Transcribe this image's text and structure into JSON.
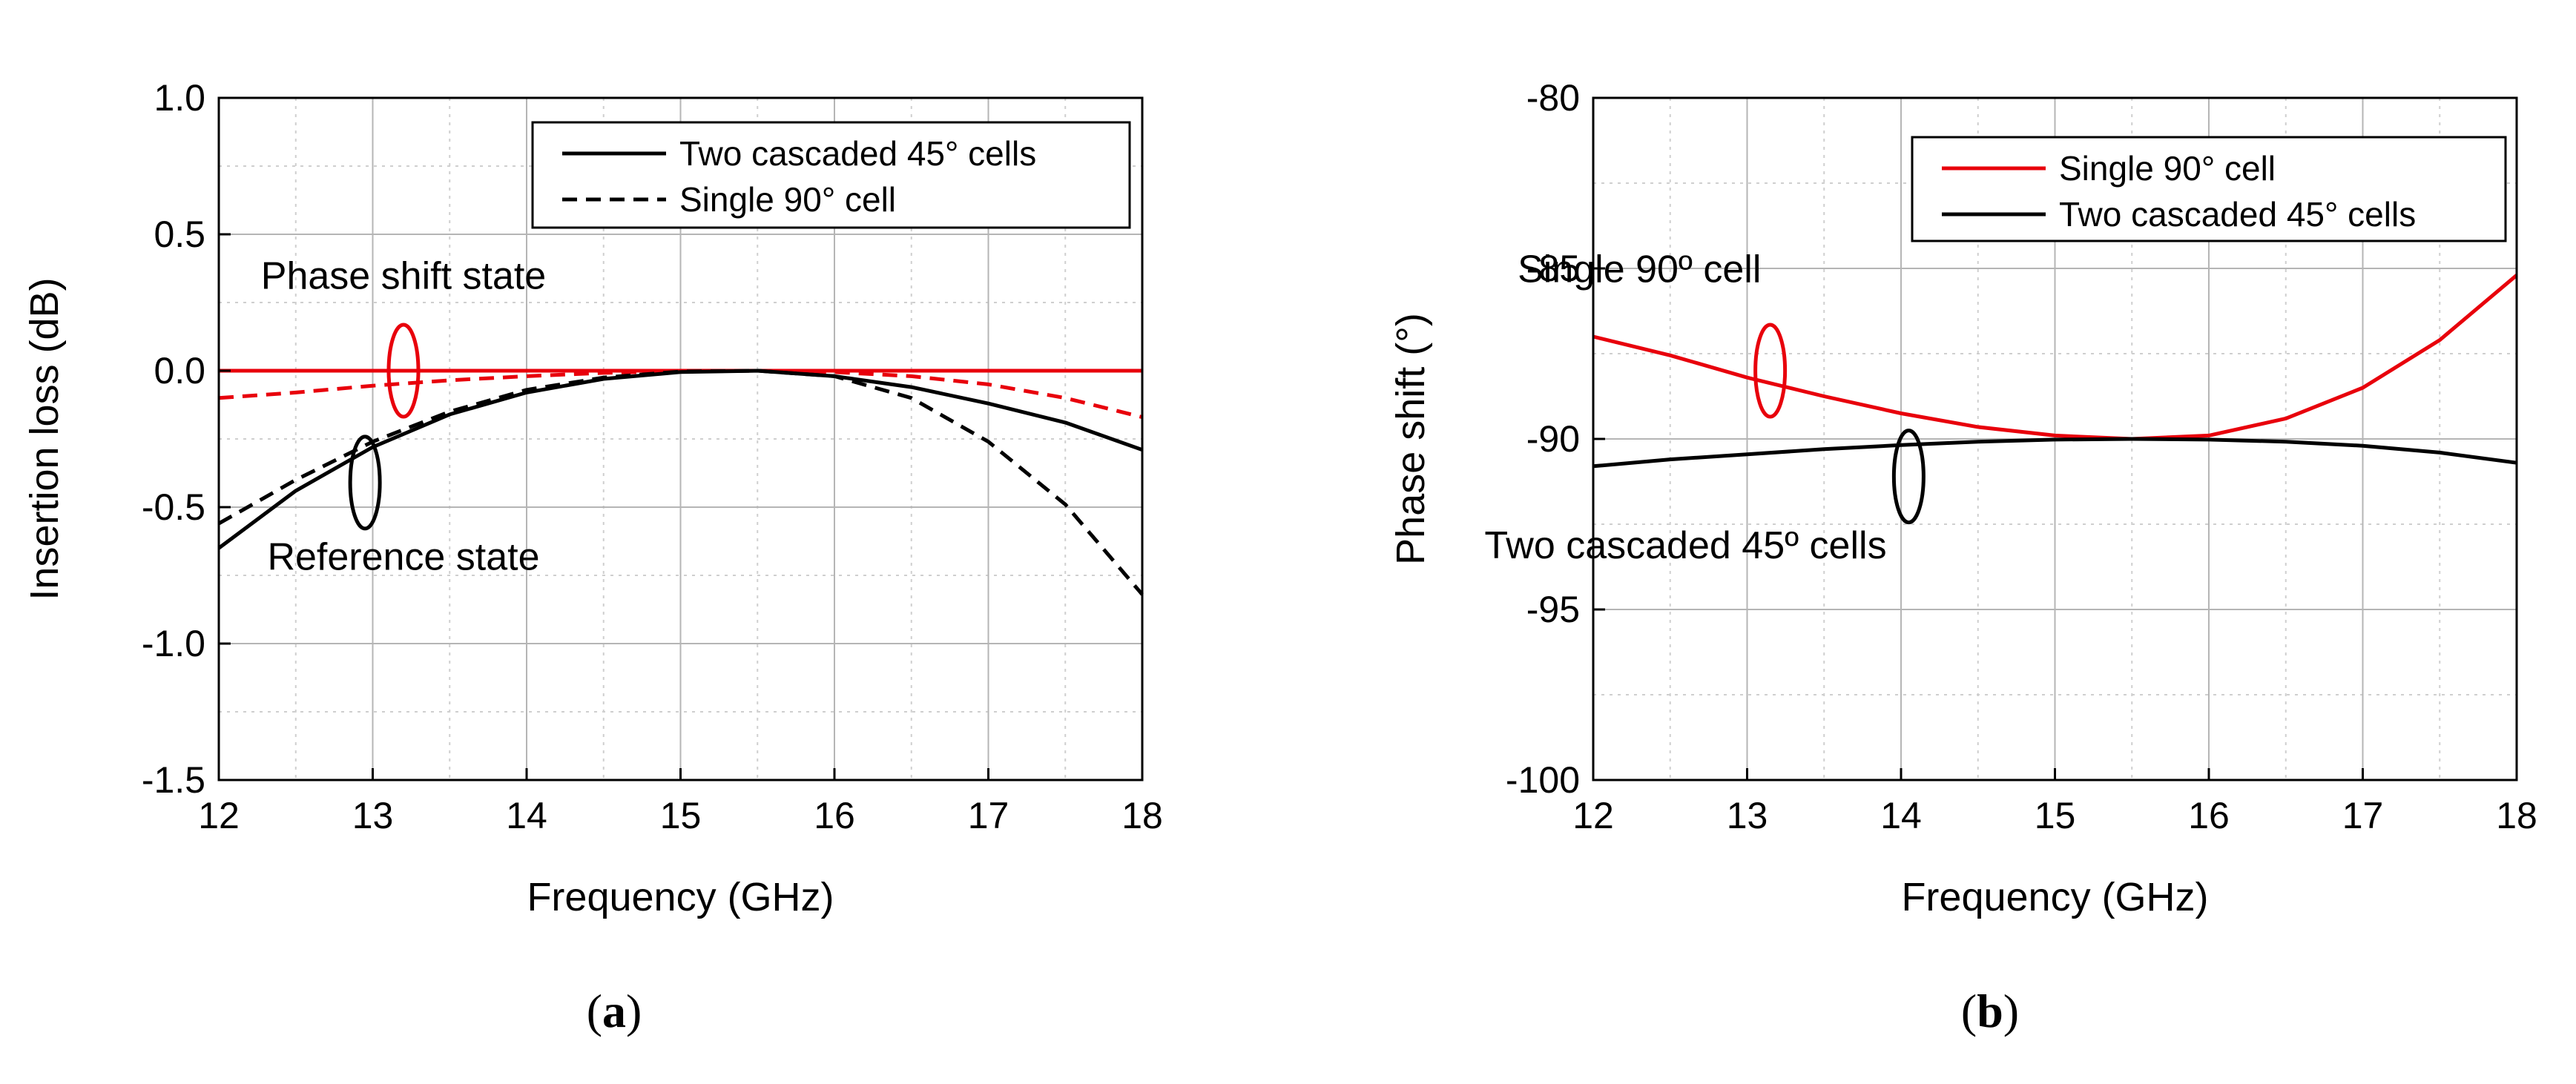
{
  "chart_data": [
    {
      "type": "line",
      "panel_label": "a",
      "title": "",
      "xlabel": "Frequency (GHz)",
      "ylabel": "Insertion loss (dB)",
      "xlim": [
        12,
        18
      ],
      "ylim": [
        -1.5,
        1.0
      ],
      "xticks": [
        12,
        13,
        14,
        15,
        16,
        17,
        18
      ],
      "yticks": [
        1.0,
        0.5,
        0.0,
        -0.5,
        -1.0,
        -1.5
      ],
      "xtick_labels": [
        "12",
        "13",
        "14",
        "15",
        "16",
        "17",
        "18"
      ],
      "ytick_labels": [
        "1.0",
        "0.5",
        "0.0",
        "-0.5",
        "-1.0",
        "-1.5"
      ],
      "grid": true,
      "legend": {
        "position": "top-right",
        "entries": [
          {
            "label": "Two cascaded 45° cells",
            "color": "#000000",
            "dash": "solid"
          },
          {
            "label": "Single 90° cell",
            "color": "#000000",
            "dash": "dashed"
          }
        ]
      },
      "series": [
        {
          "name": "Two cascaded 45° cells - phase shift state",
          "color": "#e8000b",
          "dash": "solid",
          "x": [
            12,
            13,
            14,
            15,
            15.5,
            16,
            17,
            18
          ],
          "y": [
            0.0,
            0.0,
            0.0,
            0.0,
            0.0,
            0.0,
            0.0,
            0.0
          ]
        },
        {
          "name": "Single 90° cell - phase shift state",
          "color": "#e8000b",
          "dash": "dashed",
          "x": [
            12,
            12.5,
            13,
            13.5,
            14,
            14.5,
            15,
            15.5,
            16,
            16.5,
            17,
            17.5,
            18
          ],
          "y": [
            -0.1,
            -0.08,
            -0.055,
            -0.035,
            -0.02,
            -0.008,
            -0.002,
            0.0,
            -0.005,
            -0.02,
            -0.05,
            -0.1,
            -0.17
          ]
        },
        {
          "name": "Two cascaded 45° cells - reference state",
          "color": "#000000",
          "dash": "solid",
          "x": [
            12,
            12.5,
            13,
            13.5,
            14,
            14.5,
            15,
            15.5,
            16,
            16.5,
            17,
            17.5,
            18
          ],
          "y": [
            -0.65,
            -0.44,
            -0.28,
            -0.16,
            -0.08,
            -0.03,
            -0.005,
            0.0,
            -0.02,
            -0.06,
            -0.12,
            -0.19,
            -0.29
          ]
        },
        {
          "name": "Single 90° cell - reference state",
          "color": "#000000",
          "dash": "dashed",
          "x": [
            12,
            12.5,
            13,
            13.5,
            14,
            14.5,
            15,
            15.5,
            16,
            16.5,
            17,
            17.5,
            18
          ],
          "y": [
            -0.56,
            -0.4,
            -0.26,
            -0.15,
            -0.07,
            -0.025,
            -0.003,
            0.0,
            -0.02,
            -0.1,
            -0.26,
            -0.49,
            -0.82
          ]
        }
      ],
      "annotations": [
        {
          "text": "Phase shift state",
          "x": 13.2,
          "y": 0.3
        },
        {
          "text": "Reference state",
          "x": 13.2,
          "y": -0.73
        }
      ],
      "markers": [
        {
          "type": "ellipse",
          "color": "#e8000b",
          "x": 13.2,
          "y": 0.0
        },
        {
          "type": "ellipse",
          "color": "#000000",
          "x": 12.95,
          "y": -0.41
        }
      ]
    },
    {
      "type": "line",
      "panel_label": "b",
      "title": "",
      "xlabel": "Frequency (GHz)",
      "ylabel": "Phase shift (°)",
      "xlim": [
        12,
        18
      ],
      "ylim": [
        -100,
        -80
      ],
      "xticks": [
        12,
        13,
        14,
        15,
        16,
        17,
        18
      ],
      "yticks": [
        -80,
        -85,
        -90,
        -95,
        -100
      ],
      "xtick_labels": [
        "12",
        "13",
        "14",
        "15",
        "16",
        "17",
        "18"
      ],
      "ytick_labels": [
        "-80",
        "-85",
        "-90",
        "-95",
        "-100"
      ],
      "grid": true,
      "legend": {
        "position": "top-right",
        "entries": [
          {
            "label": "Single 90° cell",
            "color": "#e8000b",
            "dash": "solid"
          },
          {
            "label": "Two cascaded 45° cells",
            "color": "#000000",
            "dash": "solid"
          }
        ]
      },
      "series": [
        {
          "name": "Single 90° cell",
          "color": "#e8000b",
          "dash": "solid",
          "x": [
            12,
            12.5,
            13,
            13.5,
            14,
            14.5,
            15,
            15.5,
            16,
            16.5,
            17,
            17.5,
            18
          ],
          "y": [
            -87.0,
            -87.55,
            -88.2,
            -88.75,
            -89.25,
            -89.65,
            -89.9,
            -90.0,
            -89.9,
            -89.4,
            -88.5,
            -87.1,
            -85.2
          ]
        },
        {
          "name": "Two cascaded 45° cells",
          "color": "#000000",
          "dash": "solid",
          "x": [
            12,
            12.5,
            13,
            13.5,
            14,
            14.5,
            15,
            15.5,
            16,
            16.5,
            17,
            17.5,
            18
          ],
          "y": [
            -90.8,
            -90.6,
            -90.45,
            -90.3,
            -90.18,
            -90.08,
            -90.02,
            -90.0,
            -90.02,
            -90.08,
            -90.2,
            -90.4,
            -90.7
          ]
        }
      ],
      "annotations": [
        {
          "text": "Single 90º cell",
          "x": 12.3,
          "y": -85.4
        },
        {
          "text": "Two cascaded 45º cells",
          "x": 12.6,
          "y": -93.5
        }
      ],
      "markers": [
        {
          "type": "ellipse",
          "color": "#e8000b",
          "x": 13.15,
          "y": -88.0
        },
        {
          "type": "ellipse",
          "color": "#000000",
          "x": 14.05,
          "y": -91.1
        }
      ]
    }
  ],
  "captions": [
    "(a)",
    "(b)"
  ],
  "captions_letters": [
    "a",
    "b"
  ]
}
